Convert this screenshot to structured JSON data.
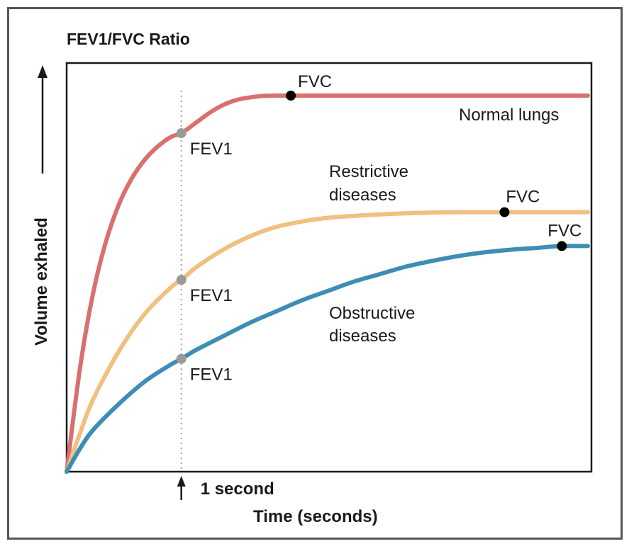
{
  "chart_data": {
    "type": "line",
    "title": "FEV1/FVC Ratio",
    "xlabel": "Time (seconds)",
    "ylabel": "Volume exhaled",
    "xlim": [
      0,
      10
    ],
    "ylim": [
      0,
      100
    ],
    "marker": {
      "x": 2.2,
      "label": "1 second"
    },
    "series": [
      {
        "name": "Normal lungs",
        "color": "#d9706e",
        "x": [
          0,
          0.25,
          0.5,
          0.75,
          1,
          1.25,
          1.5,
          1.75,
          2,
          2.2,
          2.5,
          2.75,
          3,
          3.25,
          3.5,
          3.75,
          4,
          4.3,
          5,
          6,
          7,
          8,
          9,
          10
        ],
        "y": [
          0,
          27,
          47,
          61,
          71,
          78,
          83,
          86.5,
          89,
          90,
          93,
          95.5,
          97.5,
          98.8,
          99.5,
          99.9,
          100,
          100,
          100,
          100,
          100,
          100,
          100,
          100
        ],
        "fev1": {
          "x": 2.2,
          "y": 90,
          "label": "FEV1"
        },
        "fvc": {
          "x": 4.3,
          "y": 100,
          "label": "FVC"
        }
      },
      {
        "name": "Restrictive diseases",
        "color": "#f0c080",
        "x": [
          0,
          0.25,
          0.5,
          1,
          1.5,
          2,
          2.2,
          2.5,
          3,
          3.5,
          4,
          4.5,
          5,
          5.5,
          6,
          6.5,
          7,
          7.5,
          8,
          8.5,
          9,
          10
        ],
        "y": [
          0,
          10,
          19,
          32,
          42,
          49,
          51,
          54.5,
          59,
          62.5,
          65,
          66.5,
          67.5,
          68,
          68.4,
          68.7,
          68.9,
          69,
          69,
          69,
          69,
          69
        ],
        "fev1": {
          "x": 2.2,
          "y": 51,
          "label": "FEV1"
        },
        "fvc": {
          "x": 8.4,
          "y": 69,
          "label": "FVC"
        }
      },
      {
        "name": "Obstructive diseases",
        "color": "#3e8db5",
        "x": [
          0,
          0.25,
          0.5,
          1,
          1.5,
          2,
          2.2,
          2.5,
          3,
          3.5,
          4,
          4.5,
          5,
          5.5,
          6,
          6.5,
          7,
          7.5,
          8,
          8.5,
          9,
          9.5,
          10
        ],
        "y": [
          0,
          6,
          11,
          18,
          24,
          28.5,
          30,
          32.5,
          36,
          39.5,
          42.5,
          45.5,
          48,
          50.5,
          52.5,
          54.5,
          56,
          57.3,
          58.3,
          59,
          59.5,
          60,
          60
        ],
        "fev1": {
          "x": 2.2,
          "y": 30,
          "label": "FEV1"
        },
        "fvc": {
          "x": 9.5,
          "y": 60,
          "label": "FVC"
        }
      }
    ]
  },
  "labels": {
    "normal": "Normal lungs",
    "restrictive_line1": "Restrictive",
    "restrictive_line2": "diseases",
    "obstructive_line1": "Obstructive",
    "obstructive_line2": "diseases",
    "fev1": "FEV1",
    "fvc": "FVC"
  },
  "colors": {
    "axis": "#1a1a1a",
    "frame": "#555555",
    "guide": "#a0a0a0",
    "fev1_dot": "#9a9a9a",
    "fvc_dot": "#000000"
  }
}
